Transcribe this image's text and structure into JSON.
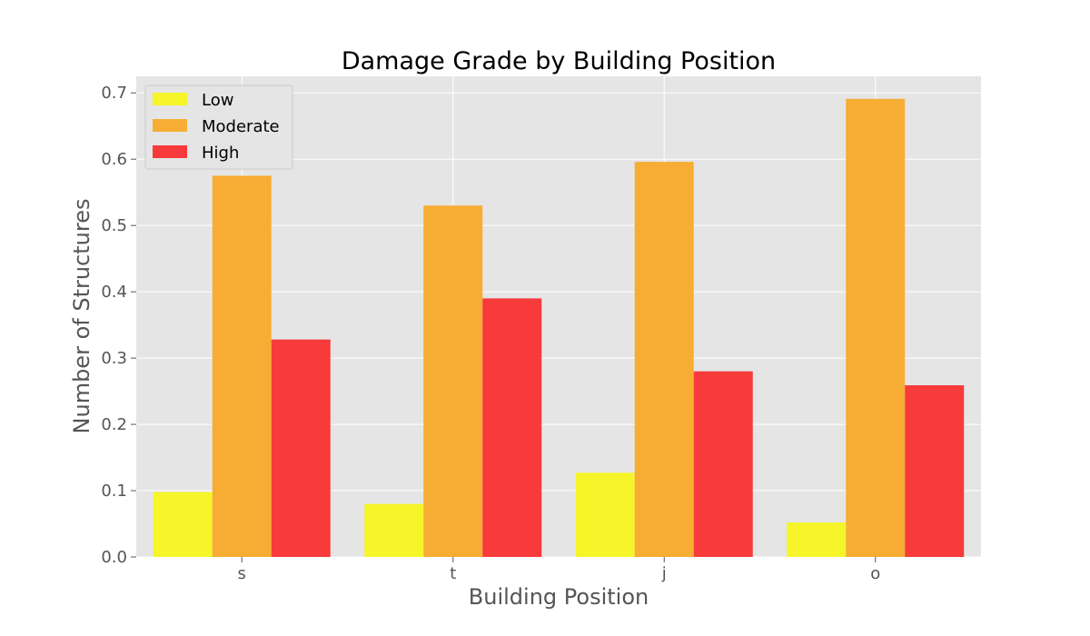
{
  "chart_data": {
    "type": "bar",
    "title": "Damage Grade by Building Position",
    "xlabel": "Building Position",
    "ylabel": "Number of Structures",
    "categories": [
      "s",
      "t",
      "j",
      "o"
    ],
    "series": [
      {
        "name": "Low",
        "color": "#f5f52a",
        "values": [
          0.098,
          0.08,
          0.127,
          0.052
        ]
      },
      {
        "name": "Moderate",
        "color": "#f7ad33",
        "values": [
          0.575,
          0.53,
          0.596,
          0.691
        ]
      },
      {
        "name": "High",
        "color": "#f73a3a",
        "values": [
          0.328,
          0.39,
          0.28,
          0.259
        ]
      }
    ],
    "ylim": [
      0,
      0.725
    ],
    "yticks": [
      "0.0",
      "0.1",
      "0.2",
      "0.3",
      "0.4",
      "0.5",
      "0.6",
      "0.7"
    ],
    "grid": true,
    "legend_position": "top-left",
    "background_color": "#e5e5e5"
  }
}
